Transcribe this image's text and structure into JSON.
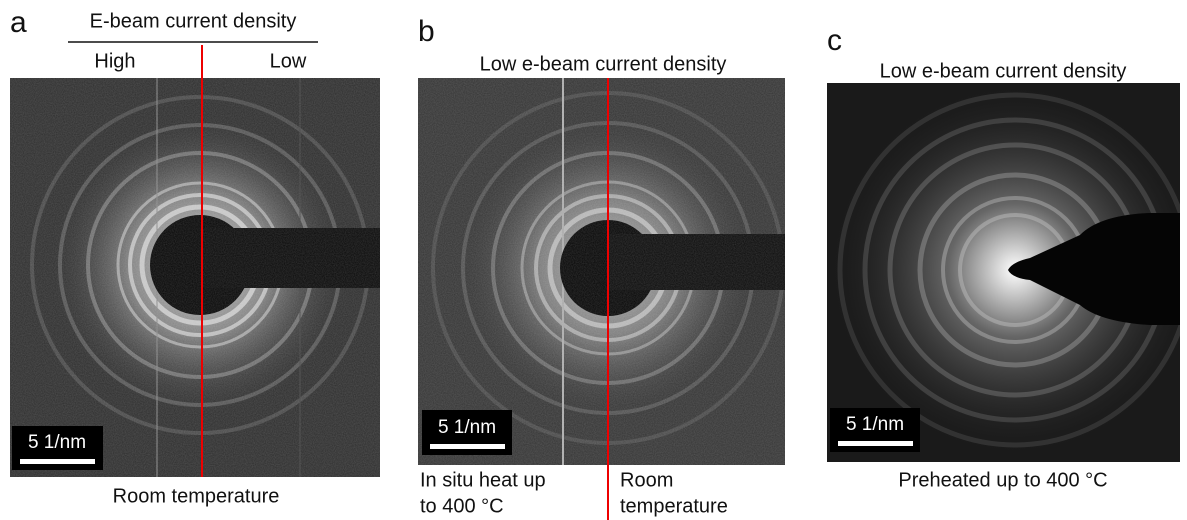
{
  "panels": [
    {
      "label": "a",
      "header": "E-beam current density",
      "left_label": "High",
      "right_label": "Low",
      "scale_bar": "5 1/nm",
      "caption": "Room temperature"
    },
    {
      "label": "b",
      "header": "Low e-beam current density",
      "scale_bar": "5 1/nm",
      "caption_left": [
        "In situ heat up",
        "to 400 °C"
      ],
      "caption_right": [
        "Room",
        "temperature"
      ]
    },
    {
      "label": "c",
      "header": "Low e-beam current density",
      "scale_bar": "5 1/nm",
      "caption": "Preheated up to 400 °C"
    }
  ]
}
